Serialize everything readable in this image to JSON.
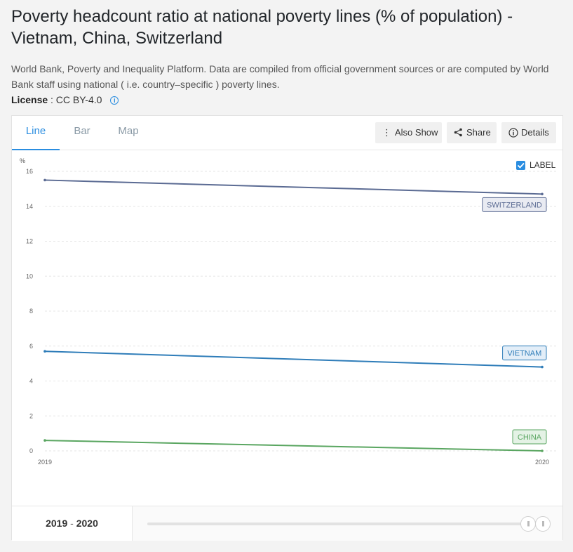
{
  "page": {
    "title": "Poverty headcount ratio at national poverty lines (% of population) - Vietnam, China, Switzerland",
    "source": "World Bank, Poverty and Inequality Platform. Data are compiled from official government sources or are computed by World Bank staff using national ( i.e. country–specific ) poverty lines.",
    "license_label": "License",
    "license_value": ": CC BY-4.0",
    "info_icon": "i"
  },
  "tabs": [
    {
      "label": "Line",
      "active": true
    },
    {
      "label": "Bar",
      "active": false
    },
    {
      "label": "Map",
      "active": false
    }
  ],
  "toolbar": {
    "also_show": "Also Show",
    "share": "Share",
    "details": "Details"
  },
  "label_toggle": {
    "text": "LABEL",
    "checked": true
  },
  "range": {
    "start": "2019",
    "separator": " - ",
    "end": "2020"
  },
  "chart_data": {
    "type": "line",
    "ylabel": "%",
    "ylim": [
      0,
      16
    ],
    "yticks": [
      "0",
      "2",
      "4",
      "6",
      "8",
      "10",
      "12",
      "14",
      "16"
    ],
    "x": [
      "2019",
      "2020"
    ],
    "grid": true,
    "series": [
      {
        "name": "SWITZERLAND",
        "values": [
          15.5,
          14.7
        ],
        "color": "#5b6b93"
      },
      {
        "name": "VIETNAM",
        "values": [
          5.7,
          4.8
        ],
        "color": "#2f7db9"
      },
      {
        "name": "CHINA",
        "values": [
          0.6,
          0.0
        ],
        "color": "#5aa661"
      }
    ]
  }
}
